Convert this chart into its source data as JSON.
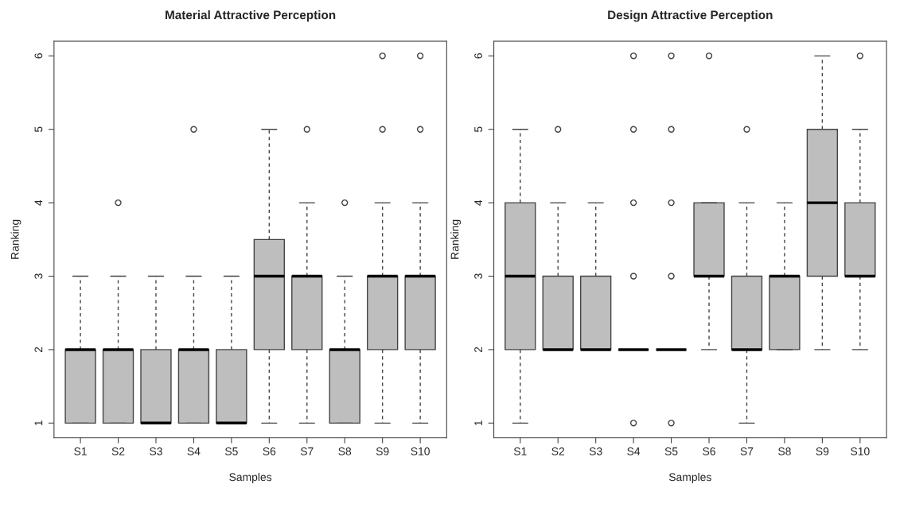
{
  "chart_data": [
    {
      "type": "box",
      "title": "Material Attractive Perception",
      "xlabel": "Samples",
      "ylabel": "Ranking",
      "categories": [
        "S1",
        "S2",
        "S3",
        "S4",
        "S5",
        "S6",
        "S7",
        "S8",
        "S9",
        "S10"
      ],
      "color": "#bebebe",
      "ylim": [
        0.8,
        6.2
      ],
      "yticks": [
        1,
        2,
        3,
        4,
        5,
        6
      ],
      "grid": false,
      "boxes": [
        {
          "low": 1,
          "q1": 1,
          "median": 2,
          "q3": 2,
          "high": 3
        },
        {
          "low": 1,
          "q1": 1,
          "median": 2,
          "q3": 2,
          "high": 3,
          "outliers": [
            4
          ]
        },
        {
          "low": 1,
          "q1": 1,
          "median": 1,
          "q3": 2,
          "high": 3
        },
        {
          "low": 1,
          "q1": 1,
          "median": 2,
          "q3": 2,
          "high": 3,
          "outliers": [
            5
          ]
        },
        {
          "low": 1,
          "q1": 1,
          "median": 1,
          "q3": 2,
          "high": 3
        },
        {
          "low": 1,
          "q1": 2,
          "median": 3,
          "q3": 3.5,
          "high": 5
        },
        {
          "low": 1,
          "q1": 2,
          "median": 3,
          "q3": 3,
          "high": 4,
          "outliers": [
            5
          ]
        },
        {
          "low": 1,
          "q1": 1,
          "median": 2,
          "q3": 2,
          "high": 3,
          "outliers": [
            4
          ]
        },
        {
          "low": 1,
          "q1": 2,
          "median": 3,
          "q3": 3,
          "high": 4,
          "outliers": [
            5,
            6
          ]
        },
        {
          "low": 1,
          "q1": 2,
          "median": 3,
          "q3": 3,
          "high": 4,
          "outliers": [
            5,
            6
          ]
        }
      ]
    },
    {
      "type": "box",
      "title": "Design Attractive Perception",
      "xlabel": "Samples",
      "ylabel": "Ranking",
      "categories": [
        "S1",
        "S2",
        "S3",
        "S4",
        "S5",
        "S6",
        "S7",
        "S8",
        "S9",
        "S10"
      ],
      "color": "#bebebe",
      "ylim": [
        0.8,
        6.2
      ],
      "yticks": [
        1,
        2,
        3,
        4,
        5,
        6
      ],
      "grid": false,
      "boxes": [
        {
          "low": 1,
          "q1": 2,
          "median": 3,
          "q3": 4,
          "high": 5
        },
        {
          "low": 2,
          "q1": 2,
          "median": 2,
          "q3": 3,
          "high": 4,
          "outliers": [
            5
          ]
        },
        {
          "low": 2,
          "q1": 2,
          "median": 2,
          "q3": 3,
          "high": 4
        },
        {
          "low": 2,
          "q1": 2,
          "median": 2,
          "q3": 2,
          "high": 2,
          "outliers": [
            1,
            3,
            4,
            5,
            6
          ]
        },
        {
          "low": 2,
          "q1": 2,
          "median": 2,
          "q3": 2,
          "high": 2,
          "outliers": [
            1,
            3,
            4,
            5,
            6
          ]
        },
        {
          "low": 2,
          "q1": 3,
          "median": 3,
          "q3": 4,
          "high": 4,
          "outliers": [
            6
          ]
        },
        {
          "low": 1,
          "q1": 2,
          "median": 2,
          "q3": 3,
          "high": 4,
          "outliers": [
            5
          ]
        },
        {
          "low": 2,
          "q1": 2,
          "median": 3,
          "q3": 3,
          "high": 4
        },
        {
          "low": 2,
          "q1": 3,
          "median": 4,
          "q3": 5,
          "high": 6
        },
        {
          "low": 2,
          "q1": 3,
          "median": 3,
          "q3": 4,
          "high": 5,
          "outliers": [
            6
          ]
        }
      ]
    }
  ]
}
